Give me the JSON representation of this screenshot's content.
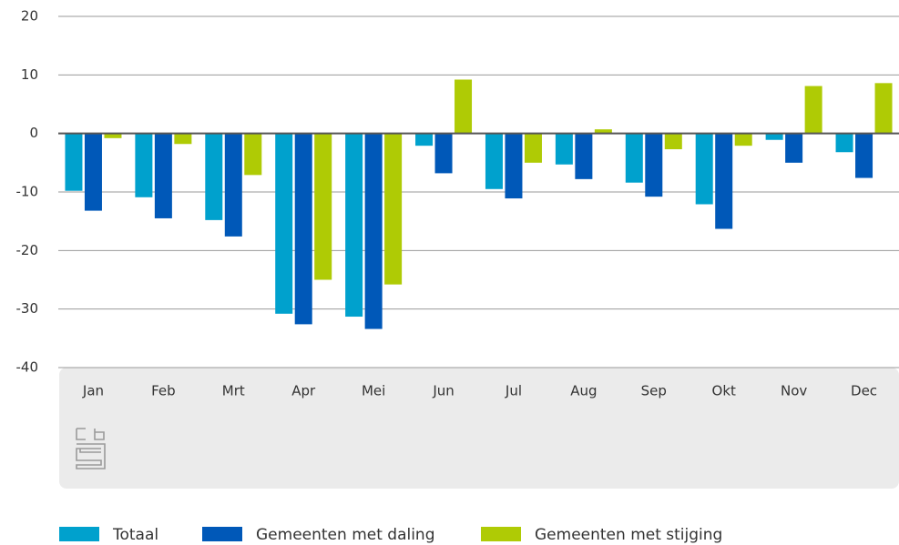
{
  "chart_data": {
    "type": "bar",
    "categories": [
      "Jan",
      "Feb",
      "Mrt",
      "Apr",
      "Mei",
      "Jun",
      "Jul",
      "Aug",
      "Sep",
      "Okt",
      "Nov",
      "Dec"
    ],
    "series": [
      {
        "name": "Totaal",
        "color": "#00a1cd",
        "values": [
          -9.8,
          -10.9,
          -14.8,
          -30.8,
          -31.3,
          -2.1,
          -9.5,
          -5.3,
          -8.4,
          -12.1,
          -1.1,
          -3.2
        ]
      },
      {
        "name": "Gemeenten met daling",
        "color": "#0058b8",
        "values": [
          -13.2,
          -14.5,
          -17.6,
          -32.6,
          -33.4,
          -6.8,
          -11.1,
          -7.8,
          -10.8,
          -16.3,
          -5.0,
          -7.6
        ]
      },
      {
        "name": "Gemeenten met stijging",
        "color": "#afcb05",
        "values": [
          -0.8,
          -1.8,
          -7.1,
          -25.0,
          -25.8,
          9.2,
          -5.0,
          0.7,
          -2.7,
          -2.1,
          8.1,
          8.6
        ]
      }
    ],
    "ylim": [
      -40,
      20
    ],
    "yticks": [
      -40,
      -30,
      -20,
      -10,
      0,
      10,
      20
    ],
    "grid": true,
    "legend": "bottom"
  }
}
